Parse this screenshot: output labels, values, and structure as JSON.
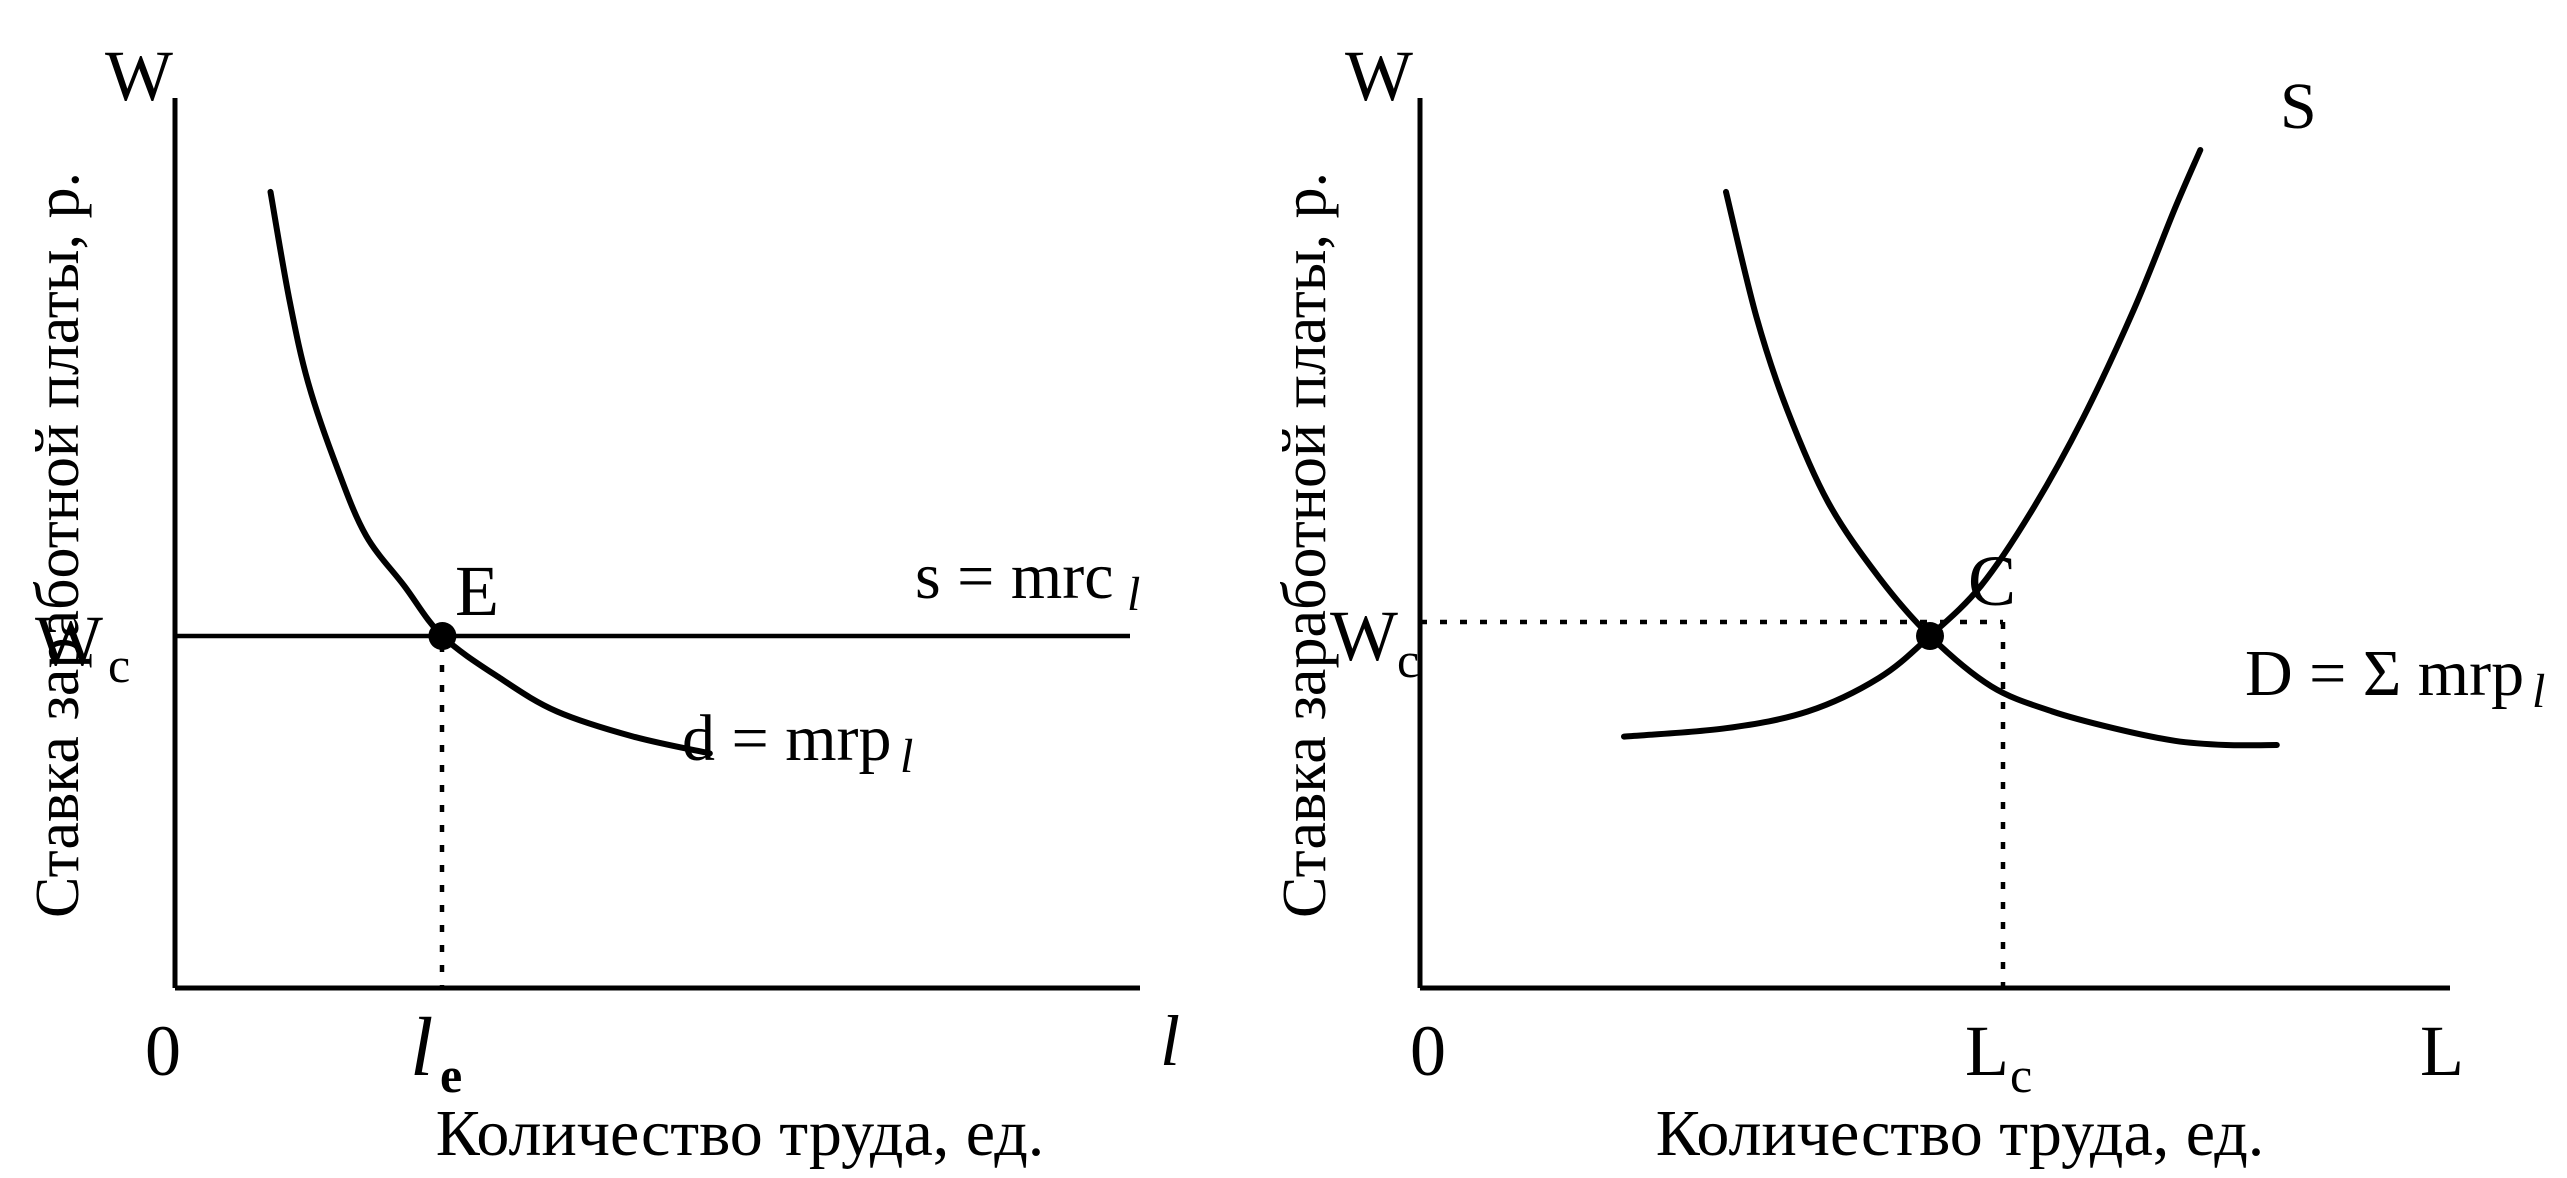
{
  "chart_data": [
    {
      "type": "line",
      "axis_labels": {
        "y_symbol": "W",
        "x_symbol": "l",
        "origin": "0",
        "ylabel": "Ставка заработной платы, р.",
        "xlabel": "Количество труда, ед."
      },
      "ticks": {
        "y_main": "W",
        "y_sub": "c",
        "x_main": "l",
        "x_sub": "e"
      },
      "series": [
        {
          "name_main": "s = mrc",
          "name_sub": "l",
          "x": [
            0,
            100
          ],
          "y": [
            42,
            42
          ]
        },
        {
          "name_main": "d = mrp",
          "name_sub": "l",
          "x": [
            10,
            12,
            14,
            17,
            20,
            24,
            28,
            34,
            40,
            48,
            56
          ],
          "y": [
            95,
            82,
            72,
            62,
            54,
            48,
            42,
            37,
            33,
            30,
            28
          ]
        }
      ],
      "points": [
        {
          "label": "E",
          "x": 28,
          "y": 42
        }
      ],
      "xlim": [
        0,
        100
      ],
      "ylim": [
        0,
        100
      ]
    },
    {
      "type": "line",
      "axis_labels": {
        "y_symbol": "W",
        "x_symbol": "L",
        "origin": "0",
        "ylabel": "Ставка заработной платы, р.",
        "xlabel": "Количество труда, ед."
      },
      "ticks": {
        "y_main": "W",
        "y_sub": "c",
        "x_main": "L",
        "x_sub": "c"
      },
      "series": [
        {
          "name_main": "S",
          "name_sub": "",
          "x": [
            20,
            30,
            38,
            45,
            50,
            55,
            60,
            65,
            70,
            74,
            76.5
          ],
          "y": [
            30,
            31,
            33,
            37,
            42,
            48,
            57,
            68,
            81,
            93,
            100
          ]
        },
        {
          "name_main": "D = Σ mrp",
          "name_sub": "l",
          "x": [
            30,
            33,
            36,
            40,
            45,
            50,
            56,
            62,
            68,
            74,
            79,
            84
          ],
          "y": [
            95,
            80,
            69,
            58,
            49,
            42,
            36,
            33,
            31,
            29.5,
            29,
            29
          ]
        }
      ],
      "points": [
        {
          "label": "C",
          "x": 50,
          "y": 42
        }
      ],
      "xlim": [
        0,
        100
      ],
      "ylim": [
        0,
        100
      ]
    }
  ]
}
